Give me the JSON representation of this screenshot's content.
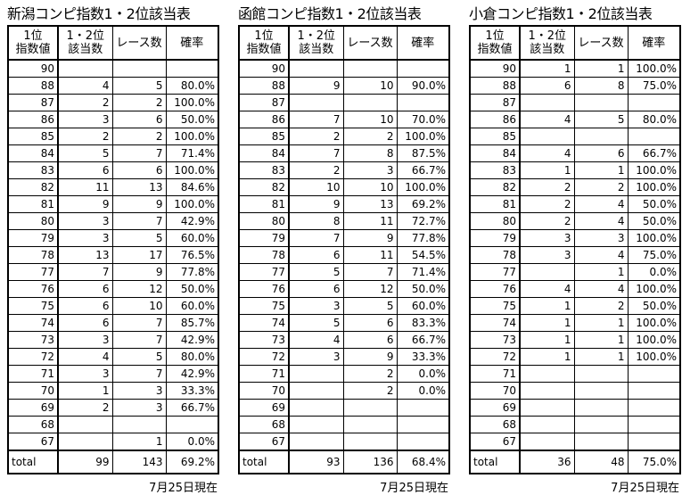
{
  "tables": [
    {
      "title": "新潟コンピ指数1・2位該当表",
      "header": [
        [
          "1位",
          "指数値"
        ],
        [
          "1・2位",
          "該当数"
        ],
        [
          "レース数"
        ],
        [
          "確率"
        ]
      ],
      "rows": [
        [
          90,
          null,
          null,
          null
        ],
        [
          88,
          4,
          5,
          "80.0%"
        ],
        [
          87,
          2,
          2,
          "100.0%"
        ],
        [
          86,
          3,
          6,
          "50.0%"
        ],
        [
          85,
          2,
          2,
          "100.0%"
        ],
        [
          84,
          5,
          7,
          "71.4%"
        ],
        [
          83,
          6,
          6,
          "100.0%"
        ],
        [
          82,
          11,
          13,
          "84.6%"
        ],
        [
          81,
          9,
          9,
          "100.0%"
        ],
        [
          80,
          3,
          7,
          "42.9%"
        ],
        [
          79,
          3,
          5,
          "60.0%"
        ],
        [
          78,
          13,
          17,
          "76.5%"
        ],
        [
          77,
          7,
          9,
          "77.8%"
        ],
        [
          76,
          6,
          12,
          "50.0%"
        ],
        [
          75,
          6,
          10,
          "60.0%"
        ],
        [
          74,
          6,
          7,
          "85.7%"
        ],
        [
          73,
          3,
          7,
          "42.9%"
        ],
        [
          72,
          4,
          5,
          "80.0%"
        ],
        [
          71,
          3,
          7,
          "42.9%"
        ],
        [
          70,
          1,
          3,
          "33.3%"
        ],
        [
          69,
          2,
          3,
          "66.7%"
        ],
        [
          68,
          null,
          null,
          null
        ],
        [
          67,
          null,
          1,
          "0.0%"
        ]
      ],
      "total": [
        "total",
        99,
        143,
        "69.2%"
      ],
      "footer": "7月25日現在"
    },
    {
      "title": "函館コンピ指数1・2位該当表",
      "header": [
        [
          "1位",
          "指数値"
        ],
        [
          "1・2位",
          "該当数"
        ],
        [
          "レース数"
        ],
        [
          "確率"
        ]
      ],
      "rows": [
        [
          90,
          null,
          null,
          null
        ],
        [
          88,
          9,
          10,
          "90.0%"
        ],
        [
          87,
          null,
          null,
          null
        ],
        [
          86,
          7,
          10,
          "70.0%"
        ],
        [
          85,
          2,
          2,
          "100.0%"
        ],
        [
          84,
          7,
          8,
          "87.5%"
        ],
        [
          83,
          2,
          3,
          "66.7%"
        ],
        [
          82,
          10,
          10,
          "100.0%"
        ],
        [
          81,
          9,
          13,
          "69.2%"
        ],
        [
          80,
          8,
          11,
          "72.7%"
        ],
        [
          79,
          7,
          9,
          "77.8%"
        ],
        [
          78,
          6,
          11,
          "54.5%"
        ],
        [
          77,
          5,
          7,
          "71.4%"
        ],
        [
          76,
          6,
          12,
          "50.0%"
        ],
        [
          75,
          3,
          5,
          "60.0%"
        ],
        [
          74,
          5,
          6,
          "83.3%"
        ],
        [
          73,
          4,
          6,
          "66.7%"
        ],
        [
          72,
          3,
          9,
          "33.3%"
        ],
        [
          71,
          null,
          2,
          "0.0%"
        ],
        [
          70,
          null,
          2,
          "0.0%"
        ],
        [
          69,
          null,
          null,
          null
        ],
        [
          68,
          null,
          null,
          null
        ],
        [
          67,
          null,
          null,
          null
        ]
      ],
      "total": [
        "total",
        93,
        136,
        "68.4%"
      ],
      "footer": "7月25日現在"
    },
    {
      "title": "小倉コンピ指数1・2位該当表",
      "header": [
        [
          "1位",
          "指数値"
        ],
        [
          "1・2位",
          "該当数"
        ],
        [
          "レース数"
        ],
        [
          "確率"
        ]
      ],
      "rows": [
        [
          90,
          1,
          1,
          "100.0%"
        ],
        [
          88,
          6,
          8,
          "75.0%"
        ],
        [
          87,
          null,
          null,
          null
        ],
        [
          86,
          4,
          5,
          "80.0%"
        ],
        [
          85,
          null,
          null,
          null
        ],
        [
          84,
          4,
          6,
          "66.7%"
        ],
        [
          83,
          1,
          1,
          "100.0%"
        ],
        [
          82,
          2,
          2,
          "100.0%"
        ],
        [
          81,
          2,
          4,
          "50.0%"
        ],
        [
          80,
          2,
          4,
          "50.0%"
        ],
        [
          79,
          3,
          3,
          "100.0%"
        ],
        [
          78,
          3,
          4,
          "75.0%"
        ],
        [
          77,
          null,
          1,
          "0.0%"
        ],
        [
          76,
          4,
          4,
          "100.0%"
        ],
        [
          75,
          1,
          2,
          "50.0%"
        ],
        [
          74,
          1,
          1,
          "100.0%"
        ],
        [
          73,
          1,
          1,
          "100.0%"
        ],
        [
          72,
          1,
          1,
          "100.0%"
        ],
        [
          71,
          null,
          null,
          null
        ],
        [
          70,
          null,
          null,
          null
        ],
        [
          69,
          null,
          null,
          null
        ],
        [
          68,
          null,
          null,
          null
        ],
        [
          67,
          null,
          null,
          null
        ]
      ],
      "total": [
        "total",
        36,
        48,
        "75.0%"
      ],
      "footer": "7月25日現在"
    }
  ]
}
